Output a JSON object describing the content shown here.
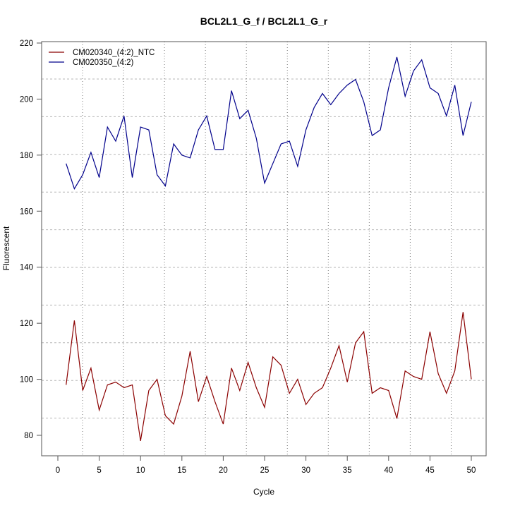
{
  "chart_data": {
    "type": "line",
    "title": "BCL2L1_G_f / BCL2L1_G_r",
    "xlabel": "Cycle",
    "ylabel": "Fluorescent",
    "xlim": [
      0,
      50
    ],
    "ylim": [
      73,
      221
    ],
    "x_ticks": [
      0,
      5,
      10,
      15,
      20,
      25,
      30,
      35,
      40,
      45,
      50
    ],
    "y_ticks": [
      80,
      100,
      120,
      140,
      160,
      180,
      200,
      220
    ],
    "grid": true,
    "legend_position": "top-left",
    "x": [
      1,
      2,
      3,
      4,
      5,
      6,
      7,
      8,
      9,
      10,
      11,
      12,
      13,
      14,
      15,
      16,
      17,
      18,
      19,
      20,
      21,
      22,
      23,
      24,
      25,
      26,
      27,
      28,
      29,
      30,
      31,
      32,
      33,
      34,
      35,
      36,
      37,
      38,
      39,
      40,
      41,
      42,
      43,
      44,
      45,
      46,
      47,
      48,
      49,
      50
    ],
    "series": [
      {
        "name": "CM020340_(4:2)_NTC",
        "color": "#8b0000",
        "values": [
          98,
          121,
          96,
          104,
          89,
          98,
          99,
          97,
          98,
          78,
          96,
          100,
          87,
          84,
          94,
          110,
          92,
          101,
          92,
          84,
          104,
          96,
          106,
          97,
          90,
          108,
          105,
          95,
          100,
          91,
          95,
          97,
          104,
          112,
          99,
          113,
          117,
          95,
          97,
          96,
          86,
          103,
          101,
          100,
          117,
          102,
          95,
          103,
          124,
          100
        ]
      },
      {
        "name": "CM020350_(4:2)",
        "color": "#00008b",
        "values": [
          177,
          168,
          173,
          181,
          172,
          190,
          185,
          194,
          172,
          190,
          189,
          173,
          169,
          184,
          180,
          179,
          189,
          194,
          182,
          182,
          203,
          193,
          196,
          186,
          170,
          177,
          184,
          185,
          176,
          189,
          197,
          202,
          198,
          202,
          205,
          207,
          199,
          187,
          189,
          204,
          215,
          201,
          210,
          214,
          204,
          202,
          194,
          205,
          187,
          199
        ]
      }
    ]
  }
}
